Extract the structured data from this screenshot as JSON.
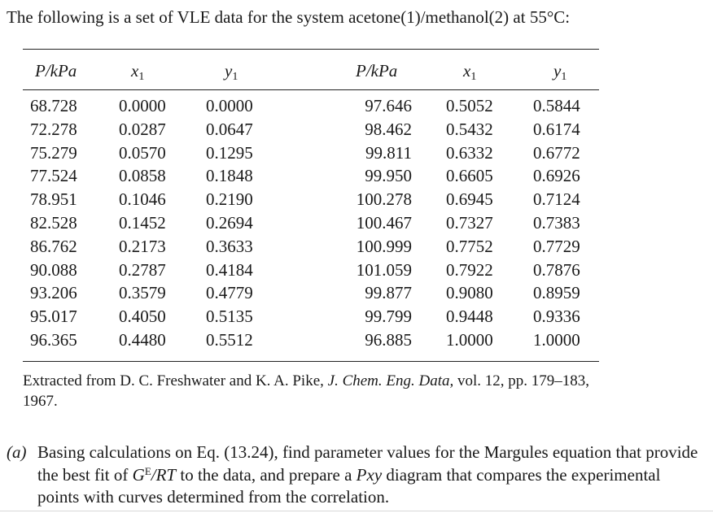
{
  "intro": "The following is a set of VLE data for the system acetone(1)/methanol(2) at 55°C:",
  "headers": {
    "p": "P/kPa",
    "x_main": "x",
    "x_sub": "1",
    "y_main": "y",
    "y_sub": "1"
  },
  "left": {
    "P": [
      "68.728",
      "72.278",
      "75.279",
      "77.524",
      "78.951",
      "82.528",
      "86.762",
      "90.088",
      "93.206",
      "95.017",
      "96.365"
    ],
    "x1": [
      "0.0000",
      "0.0287",
      "0.0570",
      "0.0858",
      "0.1046",
      "0.1452",
      "0.2173",
      "0.2787",
      "0.3579",
      "0.4050",
      "0.4480"
    ],
    "y1": [
      "0.0000",
      "0.0647",
      "0.1295",
      "0.1848",
      "0.2190",
      "0.2694",
      "0.3633",
      "0.4184",
      "0.4779",
      "0.5135",
      "0.5512"
    ]
  },
  "right": {
    "P": [
      "97.646",
      "98.462",
      "99.811",
      "99.950",
      "100.278",
      "100.467",
      "100.999",
      "101.059",
      "99.877",
      "99.799",
      "96.885"
    ],
    "x1": [
      "0.5052",
      "0.5432",
      "0.6332",
      "0.6605",
      "0.6945",
      "0.7327",
      "0.7752",
      "0.7922",
      "0.9080",
      "0.9448",
      "1.0000"
    ],
    "y1": [
      "0.5844",
      "0.6174",
      "0.6772",
      "0.6926",
      "0.7124",
      "0.7383",
      "0.7729",
      "0.7876",
      "0.8959",
      "0.9336",
      "1.0000"
    ]
  },
  "source": {
    "prefix": "Extracted from D. C. Freshwater and K. A. Pike, ",
    "journal": "J. Chem. Eng. Data,",
    "suffix": " vol. 12, pp. 179–183, 1967."
  },
  "question": {
    "label": "(a)",
    "part1": "Basing calculations on Eq. (13.24), find parameter values for the Margules equation that provide the best fit of ",
    "ge_main": "G",
    "ge_sup": "E",
    "ge_rest": "/RT",
    "part2": " to the data, and prepare a ",
    "pxy": "Pxy",
    "part3": " diagram that compares the experimental points with curves determined from the correlation."
  }
}
